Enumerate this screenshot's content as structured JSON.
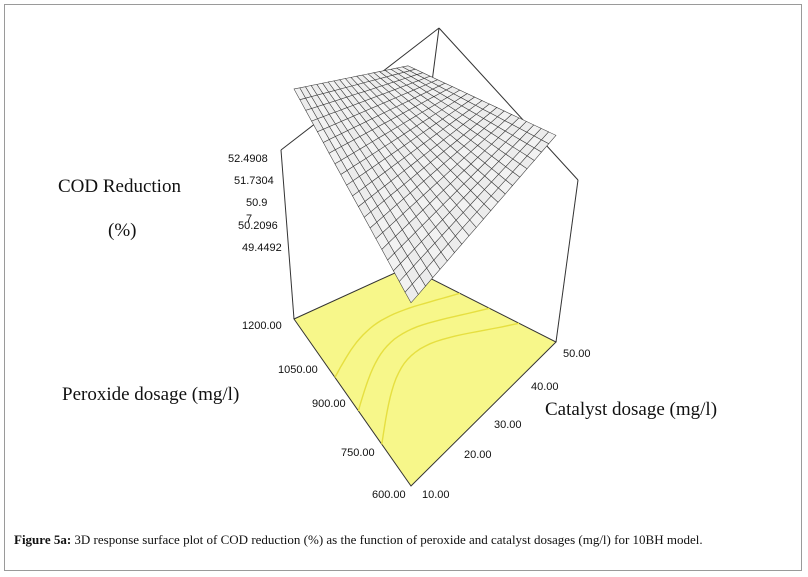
{
  "chart_data": {
    "type": "surface3d",
    "z_label_line1": "COD Reduction",
    "z_label_line2": "(%)",
    "x_label": "Peroxide dosage (mg/l)",
    "y_label": "Catalyst dosage (mg/l)",
    "z_ticks": [
      "52.4908",
      "51.7304",
      "50.9",
      "50.2096",
      "49.4492"
    ],
    "z_tick_fragment": "7",
    "x_ticks": [
      "600.00",
      "750.00",
      "900.00",
      "1050.00",
      "1200.00"
    ],
    "y_ticks": [
      "10.00",
      "20.00",
      "30.00",
      "40.00",
      "50.00"
    ],
    "x_range": [
      600,
      1200
    ],
    "y_range": [
      10,
      50
    ],
    "z_range": [
      49.4492,
      52.4908
    ],
    "surface_corners": {
      "peroxide_1200_catalyst_10": 52.4908,
      "peroxide_1200_catalyst_50": 50.9,
      "peroxide_600_catalyst_50": 51.2,
      "peroxide_600_catalyst_10": 49.9
    },
    "grid_divisions": 20
  },
  "caption": {
    "label": "Figure 5a:",
    "text": " 3D response surface plot of COD reduction (%) as the function of peroxide and catalyst dosages (mg/l) for 10BH model."
  }
}
